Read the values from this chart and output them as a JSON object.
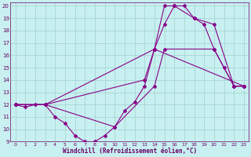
{
  "title": "",
  "xlabel": "Windchill (Refroidissement éolien,°C)",
  "bg_color": "#c8f0f0",
  "line_color": "#880088",
  "xlim": [
    -0.5,
    23.5
  ],
  "ylim": [
    9,
    20.3
  ],
  "xticks": [
    0,
    1,
    2,
    3,
    4,
    5,
    6,
    7,
    8,
    9,
    10,
    11,
    12,
    13,
    14,
    15,
    16,
    17,
    18,
    19,
    20,
    21,
    22,
    23
  ],
  "yticks": [
    9,
    10,
    11,
    12,
    13,
    14,
    15,
    16,
    17,
    18,
    19,
    20
  ],
  "line1_x": [
    0,
    1,
    2,
    3,
    4,
    5,
    6,
    7,
    8,
    9,
    10,
    11,
    12,
    13,
    14,
    15,
    16,
    17,
    18,
    19,
    20,
    21,
    22,
    23
  ],
  "line1_y": [
    12,
    11.8,
    12,
    12,
    11,
    10.5,
    9.5,
    9,
    9,
    9.5,
    10.2,
    11.5,
    12.2,
    13.5,
    16.5,
    18.5,
    20,
    20,
    19,
    18.5,
    16.5,
    15,
    13.5,
    13.5
  ],
  "line2_x": [
    0,
    3,
    14,
    23
  ],
  "line2_y": [
    12,
    12,
    16.5,
    13.5
  ],
  "line3_x": [
    0,
    3,
    13,
    14,
    15,
    16,
    18,
    20,
    22,
    23
  ],
  "line3_y": [
    12,
    12,
    14,
    16.5,
    20,
    20,
    19,
    18.5,
    13.5,
    13.5
  ],
  "line4_x": [
    0,
    3,
    10,
    14,
    15,
    20,
    22,
    23
  ],
  "line4_y": [
    12,
    12,
    10.2,
    13.5,
    16.5,
    16.5,
    13.5,
    13.5
  ]
}
